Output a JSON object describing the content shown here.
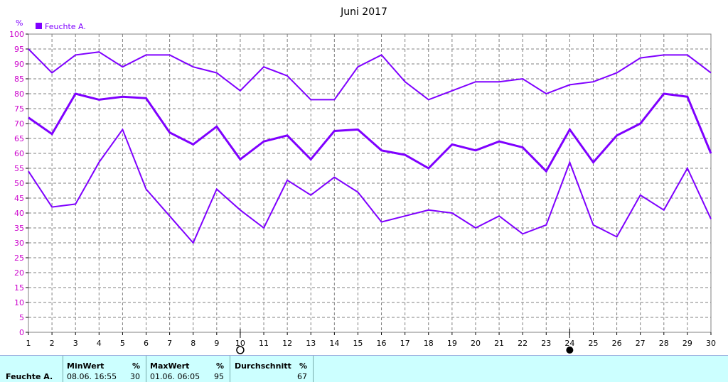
{
  "chart_data": {
    "type": "line",
    "title": "Juni 2017",
    "ylabel": "%",
    "x": [
      1,
      2,
      3,
      4,
      5,
      6,
      7,
      8,
      9,
      10,
      11,
      12,
      13,
      14,
      15,
      16,
      17,
      18,
      19,
      20,
      21,
      22,
      23,
      24,
      25,
      26,
      27,
      28,
      29,
      30
    ],
    "ylim": [
      0,
      100
    ],
    "yticks": [
      0,
      5,
      10,
      15,
      20,
      25,
      30,
      35,
      40,
      45,
      50,
      55,
      60,
      65,
      70,
      75,
      80,
      85,
      90,
      95,
      100
    ],
    "legend": {
      "label": "Feuchte A.",
      "placement": "top-left"
    },
    "grid": true,
    "series": [
      {
        "role": "max",
        "values": [
          95,
          87,
          93,
          94,
          89,
          93,
          93,
          89,
          87,
          81,
          89,
          86,
          78,
          78,
          89,
          93,
          84,
          78,
          81,
          84,
          84,
          85,
          80,
          83,
          84,
          87,
          92,
          93,
          93,
          87
        ]
      },
      {
        "role": "avg",
        "values": [
          72,
          66.5,
          80,
          78,
          79,
          78.5,
          67,
          63,
          69,
          58,
          64,
          66,
          58,
          67.5,
          68,
          61,
          59.5,
          55,
          63,
          61,
          64,
          62,
          54,
          68,
          57,
          66,
          70,
          80,
          79,
          60
        ]
      },
      {
        "role": "min",
        "values": [
          54,
          42,
          43,
          57,
          68,
          48,
          39,
          30,
          48,
          41,
          35,
          51,
          46,
          52,
          47,
          37,
          39,
          41,
          40,
          35,
          39,
          33,
          36,
          57,
          36,
          32,
          46,
          41,
          55,
          38
        ]
      }
    ],
    "markers": [
      {
        "x": 10,
        "kind": "open-circle"
      },
      {
        "x": 24,
        "kind": "filled-circle"
      }
    ],
    "colors": {
      "series": "#7f00ff",
      "grid": "#808080",
      "ytick": "#cc00cc"
    }
  },
  "stats": {
    "sensor": "Feuchte A.",
    "min": {
      "header": "MinWert",
      "unit": "%",
      "datetime": "08.06.  16:55",
      "value": "30"
    },
    "max": {
      "header": "MaxWert",
      "unit": "%",
      "datetime": "01.06.  06:05",
      "value": "95"
    },
    "avg": {
      "header": "Durchschnitt",
      "unit": "%",
      "value": "67"
    }
  },
  "colors": {
    "stats_bg": "#ccffff"
  }
}
